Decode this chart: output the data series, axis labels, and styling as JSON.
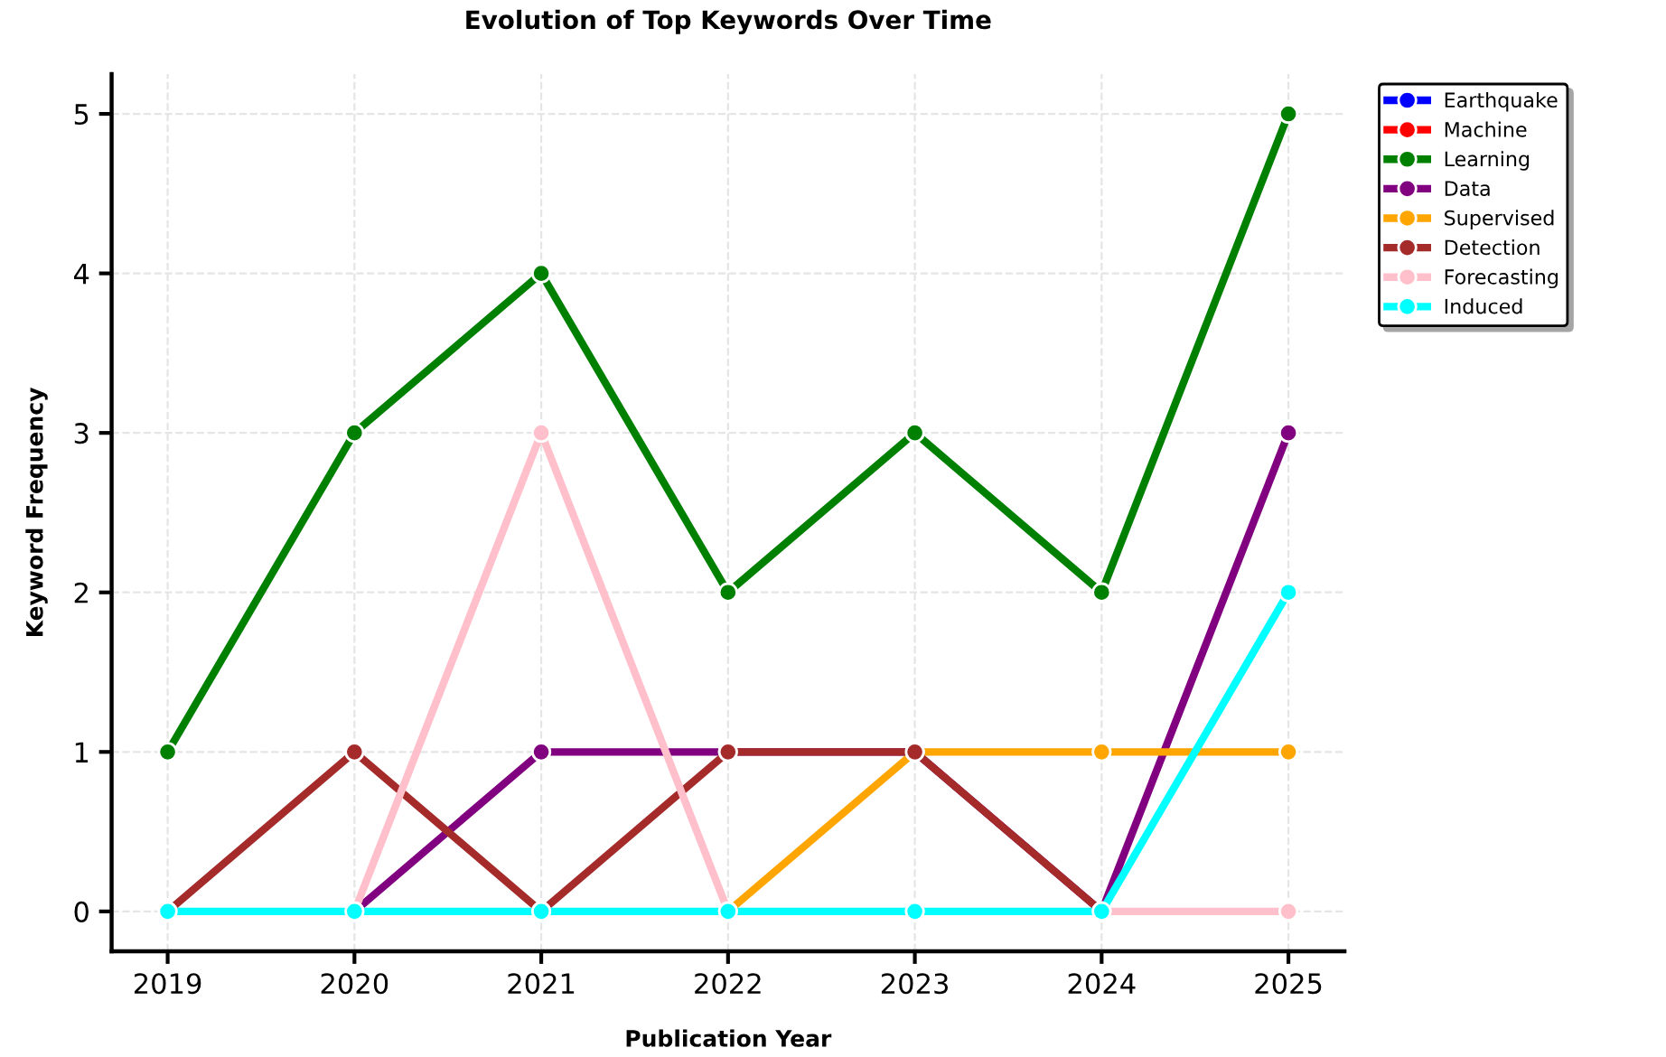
{
  "chart_data": {
    "type": "line",
    "title": "Evolution of Top Keywords Over Time",
    "xlabel": "Publication Year",
    "ylabel": "Keyword Frequency",
    "x": [
      2019,
      2020,
      2021,
      2022,
      2023,
      2024,
      2025
    ],
    "xlim": [
      2018.7,
      2025.3
    ],
    "xticks": [
      2019,
      2020,
      2021,
      2022,
      2023,
      2024,
      2025
    ],
    "ylim": [
      -0.25,
      5.25
    ],
    "yticks": [
      0,
      1,
      2,
      3,
      4,
      5
    ],
    "grid": true,
    "legend": "top right",
    "marker": "circle",
    "line_style": "solid",
    "series": [
      {
        "name": "Earthquake",
        "color": "#0000ff",
        "values": [
          null,
          null,
          null,
          null,
          null,
          null,
          null
        ]
      },
      {
        "name": "Machine",
        "color": "#ff0000",
        "values": [
          null,
          null,
          null,
          null,
          null,
          null,
          null
        ]
      },
      {
        "name": "Learning",
        "color": "#008000",
        "values": [
          1,
          3,
          4,
          2,
          3,
          2,
          5
        ]
      },
      {
        "name": "Data",
        "color": "#800080",
        "values": [
          null,
          0,
          1,
          1,
          1,
          0,
          3
        ]
      },
      {
        "name": "Supervised",
        "color": "#ffa500",
        "values": [
          null,
          null,
          null,
          0,
          1,
          1,
          1
        ]
      },
      {
        "name": "Detection",
        "color": "#a52a2a",
        "values": [
          0,
          1,
          0,
          1,
          1,
          0,
          null
        ]
      },
      {
        "name": "Forecasting",
        "color": "#ffc0cb",
        "values": [
          null,
          0,
          3,
          0,
          null,
          0,
          0
        ]
      },
      {
        "name": "Induced",
        "color": "#00ffff",
        "values": [
          0,
          0,
          0,
          0,
          0,
          0,
          2
        ]
      }
    ]
  }
}
